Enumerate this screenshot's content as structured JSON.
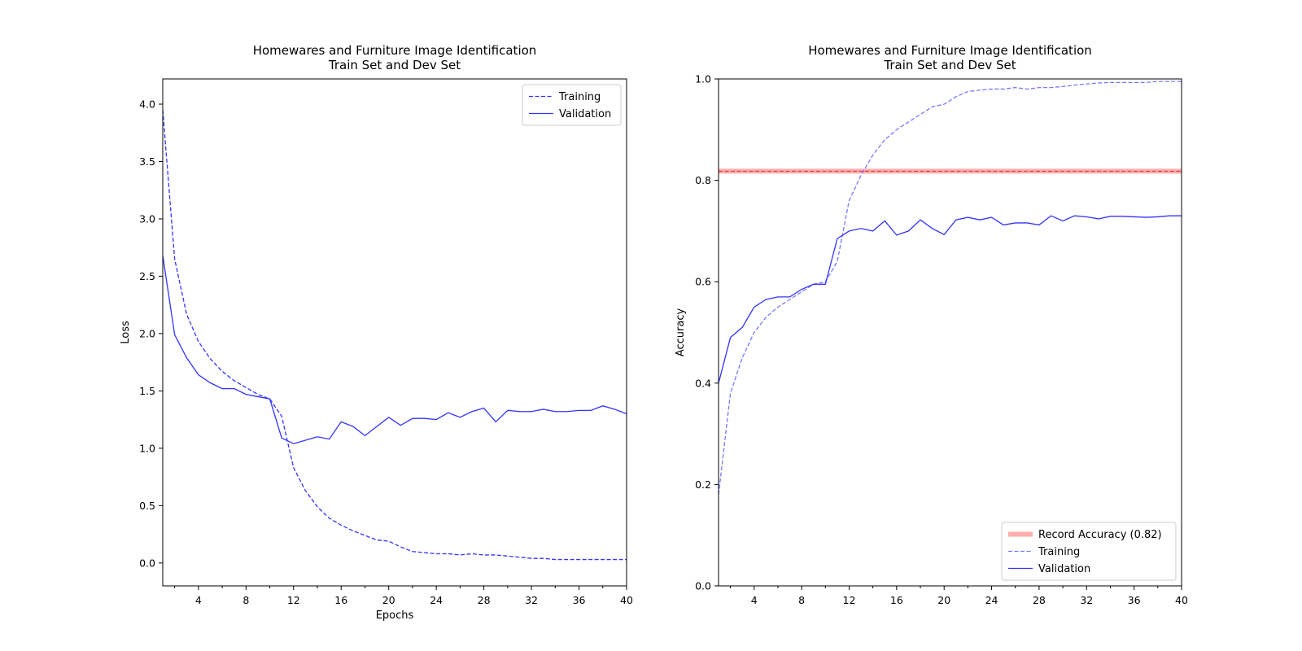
{
  "chart_data": [
    {
      "type": "line",
      "title": "Homewares and Furniture Image Identification\nTrain Set and Dev Set",
      "xlabel": "Epochs",
      "ylabel": "Loss",
      "xlim": [
        1,
        40
      ],
      "ylim": [
        -0.2,
        4.22
      ],
      "xticks": [
        4,
        8,
        12,
        16,
        20,
        24,
        28,
        32,
        36,
        40
      ],
      "xticks_minor": [
        2,
        6,
        10,
        14,
        18,
        22,
        26,
        30,
        34,
        38
      ],
      "yticks": [
        0.0,
        0.5,
        1.0,
        1.5,
        2.0,
        2.5,
        3.0,
        3.5,
        4.0
      ],
      "ytick_decimals": 1,
      "legend": "top-right",
      "grid": false,
      "hlines": [],
      "series": [
        {
          "name": "Training",
          "style": "dashed",
          "color": "#3333ff",
          "x": [
            1,
            2,
            3,
            4,
            5,
            6,
            7,
            8,
            9,
            10,
            11,
            12,
            13,
            14,
            15,
            16,
            17,
            18,
            19,
            20,
            21,
            22,
            23,
            24,
            25,
            26,
            27,
            28,
            29,
            30,
            31,
            32,
            33,
            34,
            35,
            36,
            37,
            38,
            39,
            40
          ],
          "values": [
            3.95,
            2.65,
            2.17,
            1.93,
            1.78,
            1.67,
            1.59,
            1.53,
            1.47,
            1.43,
            1.28,
            0.83,
            0.63,
            0.49,
            0.39,
            0.33,
            0.28,
            0.24,
            0.2,
            0.19,
            0.14,
            0.1,
            0.09,
            0.08,
            0.08,
            0.07,
            0.08,
            0.07,
            0.07,
            0.06,
            0.05,
            0.04,
            0.04,
            0.03,
            0.03,
            0.03,
            0.03,
            0.03,
            0.03,
            0.03
          ]
        },
        {
          "name": "Validation",
          "style": "solid",
          "color": "#3333ff",
          "x": [
            1,
            2,
            3,
            4,
            5,
            6,
            7,
            8,
            9,
            10,
            11,
            12,
            13,
            14,
            15,
            16,
            17,
            18,
            19,
            20,
            21,
            22,
            23,
            24,
            25,
            26,
            27,
            28,
            29,
            30,
            31,
            32,
            33,
            34,
            35,
            36,
            37,
            38,
            39,
            40
          ],
          "values": [
            2.68,
            1.99,
            1.79,
            1.64,
            1.57,
            1.52,
            1.52,
            1.47,
            1.45,
            1.43,
            1.09,
            1.04,
            1.07,
            1.1,
            1.08,
            1.23,
            1.19,
            1.11,
            1.19,
            1.27,
            1.2,
            1.26,
            1.26,
            1.25,
            1.31,
            1.27,
            1.32,
            1.35,
            1.23,
            1.33,
            1.32,
            1.32,
            1.34,
            1.32,
            1.32,
            1.33,
            1.33,
            1.37,
            1.34,
            1.3
          ]
        }
      ]
    },
    {
      "type": "line",
      "title": "Homewares and Furniture Image Identification\nTrain Set and Dev Set",
      "xlabel": "",
      "ylabel": "Accuracy",
      "xlim": [
        1,
        40
      ],
      "ylim": [
        0.0,
        1.0
      ],
      "xticks": [
        4,
        8,
        12,
        16,
        20,
        24,
        28,
        32,
        36,
        40
      ],
      "xticks_minor": [
        2,
        6,
        10,
        14,
        18,
        22,
        26,
        30,
        34,
        38
      ],
      "yticks": [
        0.0,
        0.2,
        0.4,
        0.6,
        0.8,
        1.0
      ],
      "ytick_decimals": 1,
      "legend": "bottom-right",
      "grid": false,
      "hlines": [
        {
          "name": "Record Accuracy (0.82)",
          "value": 0.818,
          "color": "#ff9999"
        }
      ],
      "series": [
        {
          "name": "Training",
          "style": "dashed",
          "color": "#7777ff",
          "x": [
            1,
            2,
            3,
            4,
            5,
            6,
            7,
            8,
            9,
            10,
            11,
            12,
            13,
            14,
            15,
            16,
            17,
            18,
            19,
            20,
            21,
            22,
            23,
            24,
            25,
            26,
            27,
            28,
            29,
            30,
            31,
            32,
            33,
            34,
            35,
            36,
            37,
            38,
            39,
            40
          ],
          "values": [
            0.18,
            0.38,
            0.45,
            0.5,
            0.53,
            0.55,
            0.565,
            0.58,
            0.595,
            0.6,
            0.64,
            0.76,
            0.81,
            0.85,
            0.88,
            0.9,
            0.915,
            0.93,
            0.945,
            0.95,
            0.965,
            0.975,
            0.978,
            0.98,
            0.98,
            0.983,
            0.98,
            0.983,
            0.983,
            0.985,
            0.988,
            0.99,
            0.992,
            0.993,
            0.993,
            0.993,
            0.993,
            0.995,
            0.995,
            0.995
          ]
        },
        {
          "name": "Validation",
          "style": "solid",
          "color": "#3333ff",
          "x": [
            1,
            2,
            3,
            4,
            5,
            6,
            7,
            8,
            9,
            10,
            11,
            12,
            13,
            14,
            15,
            16,
            17,
            18,
            19,
            20,
            21,
            22,
            23,
            24,
            25,
            26,
            27,
            28,
            29,
            30,
            31,
            32,
            33,
            34,
            35,
            36,
            37,
            38,
            39,
            40
          ],
          "values": [
            0.4,
            0.49,
            0.51,
            0.55,
            0.565,
            0.57,
            0.57,
            0.585,
            0.595,
            0.595,
            0.685,
            0.7,
            0.705,
            0.7,
            0.72,
            0.692,
            0.7,
            0.722,
            0.705,
            0.693,
            0.722,
            0.727,
            0.722,
            0.727,
            0.712,
            0.716,
            0.716,
            0.712,
            0.73,
            0.72,
            0.73,
            0.728,
            0.724,
            0.729,
            0.729,
            0.728,
            0.727,
            0.728,
            0.73,
            0.73
          ]
        }
      ]
    }
  ]
}
